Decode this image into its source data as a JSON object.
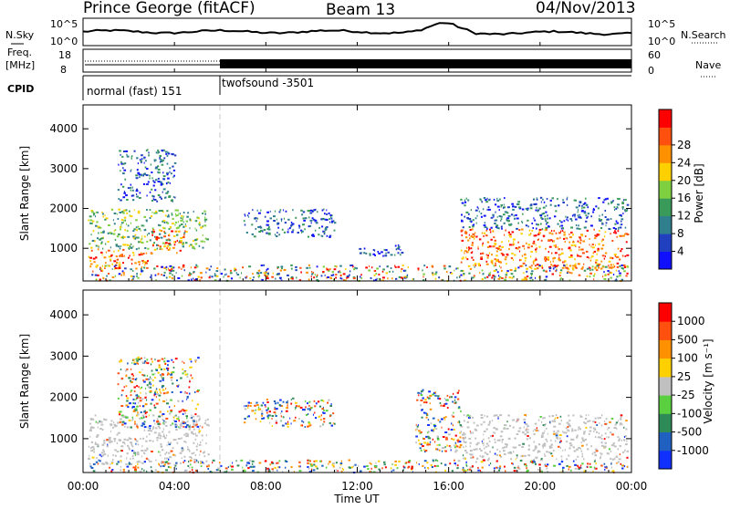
{
  "header": {
    "station": "Prince George (fitACF)",
    "beam": "Beam 13",
    "date": "04/Nov/2013"
  },
  "top_panels": {
    "nsky_label": "N.Sky",
    "nsearch_label": "N.Search",
    "freq_label_line1": "Freq.",
    "freq_label_line2": "[MHz]",
    "nave_label": "Nave",
    "cpid_label": "CPID",
    "nsky_ticks": [
      "10^5",
      "10^0"
    ],
    "nsearch_ticks": [
      "10^5",
      "10^0"
    ],
    "freq_ticks": [
      "18",
      "8"
    ],
    "nave_ticks": [
      "60",
      "0"
    ],
    "cpid_segments": [
      {
        "label": "normal (fast) 151",
        "start_hour": 0,
        "end_hour": 6
      },
      {
        "label": "twofsound -3501",
        "start_hour": 6,
        "end_hour": 24
      }
    ]
  },
  "chart_data": [
    {
      "type": "heatmap",
      "name": "power",
      "ylabel": "Slant Range [km]",
      "yticks": [
        1000,
        2000,
        3000,
        4000
      ],
      "ylim": [
        180,
        4600
      ],
      "xlim": [
        0,
        24
      ],
      "colorbar": {
        "label": "Power [dB]",
        "ticks": [
          "4",
          "8",
          "12",
          "16",
          "20",
          "24",
          "28"
        ],
        "colors": [
          "#1010ff",
          "#2040c0",
          "#2f7f8f",
          "#3a9a5a",
          "#7fd040",
          "#ffd000",
          "#ff9000",
          "#ff5010",
          "#ff0000"
        ]
      },
      "echo_regions": [
        {
          "t0": 0.2,
          "t1": 3.0,
          "r0": 500,
          "r1": 1000,
          "level": "strong"
        },
        {
          "t0": 3.0,
          "t1": 4.5,
          "r0": 900,
          "r1": 1500,
          "level": "strong"
        },
        {
          "t0": 0.2,
          "t1": 5.5,
          "r0": 1000,
          "r1": 2000,
          "level": "medium"
        },
        {
          "t0": 1.5,
          "t1": 4.0,
          "r0": 2200,
          "r1": 3500,
          "level": "weak"
        },
        {
          "t0": 7.0,
          "t1": 11.0,
          "r0": 1300,
          "r1": 2000,
          "level": "weak"
        },
        {
          "t0": 12.0,
          "t1": 14.0,
          "r0": 800,
          "r1": 1100,
          "level": "weak"
        },
        {
          "t0": 16.5,
          "t1": 23.8,
          "r0": 500,
          "r1": 1500,
          "level": "strong"
        },
        {
          "t0": 16.5,
          "t1": 23.8,
          "r0": 1500,
          "r1": 2300,
          "level": "weak"
        },
        {
          "t0": 0.3,
          "t1": 23.8,
          "r0": 200,
          "r1": 600,
          "level": "mixed"
        }
      ]
    },
    {
      "type": "heatmap",
      "name": "velocity",
      "ylabel": "Slant Range [km]",
      "yticks": [
        1000,
        2000,
        3000,
        4000
      ],
      "ylim": [
        180,
        4600
      ],
      "xlim": [
        0,
        24
      ],
      "colorbar": {
        "label": "Velocity [m s⁻¹]",
        "ticks": [
          "1000",
          "500",
          "100",
          "25",
          "-25",
          "-100",
          "-500",
          "-1000"
        ],
        "colors": [
          "#1030ff",
          "#2060c0",
          "#2e8b57",
          "#5ad040",
          "#c0c0c0",
          "#ffd000",
          "#ff9000",
          "#ff5010",
          "#ff0000"
        ]
      },
      "echo_regions": [
        {
          "t0": 0.2,
          "t1": 5.5,
          "r0": 400,
          "r1": 1600,
          "level": "ground"
        },
        {
          "t0": 1.5,
          "t1": 5.0,
          "r0": 1300,
          "r1": 3000,
          "level": "mixed"
        },
        {
          "t0": 7.0,
          "t1": 11.0,
          "r0": 1300,
          "r1": 2000,
          "level": "mixed"
        },
        {
          "t0": 16.5,
          "t1": 23.8,
          "r0": 500,
          "r1": 1600,
          "level": "ground"
        },
        {
          "t0": 14.5,
          "t1": 16.5,
          "r0": 700,
          "r1": 2200,
          "level": "mixed"
        },
        {
          "t0": 0.3,
          "t1": 23.8,
          "r0": 200,
          "r1": 500,
          "level": "mixed"
        }
      ]
    }
  ],
  "x_axis": {
    "ticks": [
      "00:00",
      "04:00",
      "08:00",
      "12:00",
      "16:00",
      "20:00",
      "00:00"
    ],
    "label": "Time UT"
  },
  "colors": {
    "axis": "#000000",
    "divider_line": "#c8c8c8"
  }
}
